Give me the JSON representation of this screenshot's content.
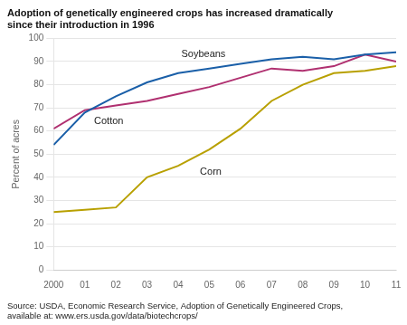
{
  "chart_data": {
    "type": "line",
    "title": "Adoption of genetically engineered crops has increased dramatically\nsince their introduction in 1996",
    "y_label": "Percent of acres",
    "source": [
      "Source: USDA, Economic Research Service, Adoption of Genetically Engineered Crops,",
      "available at: www.ers.usda.gov/data/biotechcrops/"
    ],
    "x": [
      2000,
      2001,
      2002,
      2003,
      2004,
      2005,
      2006,
      2007,
      2008,
      2009,
      2010,
      2011
    ],
    "series": [
      {
        "name": "Soybeans",
        "color": "#1a5fa8",
        "values": [
          54,
          68,
          75,
          81,
          85,
          87,
          89,
          91,
          92,
          91,
          93,
          94
        ]
      },
      {
        "name": "Cotton",
        "color": "#b03070",
        "values": [
          61,
          69,
          71,
          73,
          76,
          79,
          83,
          87,
          86,
          88,
          93,
          90
        ]
      },
      {
        "name": "Corn",
        "color": "#b8a000",
        "values": [
          25,
          26,
          27,
          40,
          45,
          52,
          61,
          73,
          80,
          85,
          86,
          88
        ]
      }
    ],
    "xlim": [
      2000,
      2011
    ],
    "xticks": [
      2000,
      {
        "value": 2001,
        "label": "01"
      },
      {
        "value": 2002,
        "label": "02"
      },
      {
        "value": 2003,
        "label": "03"
      },
      {
        "value": 2004,
        "label": "04"
      },
      {
        "value": 2005,
        "label": "05"
      },
      {
        "value": 2006,
        "label": "06"
      },
      {
        "value": 2007,
        "label": "07"
      },
      {
        "value": 2008,
        "label": "08"
      },
      {
        "value": 2009,
        "label": "09"
      },
      {
        "value": 2010,
        "label": "10"
      },
      {
        "value": 2011,
        "label": "11"
      }
    ],
    "ylim": [
      0,
      100
    ],
    "yticks": [
      0,
      10,
      20,
      30,
      40,
      50,
      60,
      70,
      80,
      90,
      100
    ],
    "grid": true,
    "annotations": [
      {
        "text": "Soybeans",
        "x": 2004.1,
        "y": 92
      },
      {
        "text": "Cotton",
        "x": 2001.3,
        "y": 63
      },
      {
        "text": "Corn",
        "x": 2004.7,
        "y": 41
      }
    ]
  }
}
